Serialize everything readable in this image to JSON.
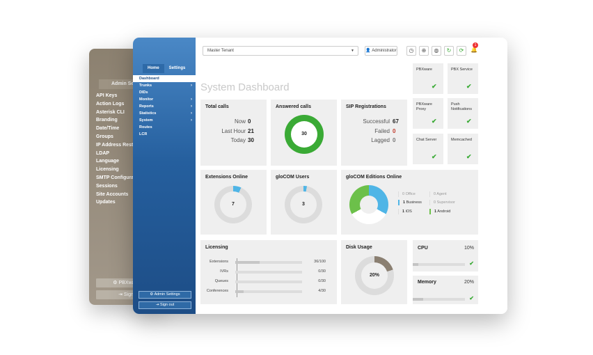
{
  "back_window": {
    "title": "Admin Setti",
    "items": [
      "API Keys",
      "Action Logs",
      "Asterisk CLI",
      "Branding",
      "Date/Time",
      "Groups",
      "IP Address Restric",
      "LDAP",
      "Language",
      "Licensing",
      "SMTP Configurati",
      "Sessions",
      "Site Accounts",
      "Updates"
    ],
    "btn_pbxware": "PBXware",
    "btn_sign": "Sign"
  },
  "sidebar": {
    "tabs": [
      "Home",
      "Settings"
    ],
    "menu": [
      {
        "label": "Dashboard",
        "arrow": ""
      },
      {
        "label": "Trunks",
        "arrow": "›"
      },
      {
        "label": "DIDs",
        "arrow": ""
      },
      {
        "label": "Monitor",
        "arrow": "›"
      },
      {
        "label": "Reports",
        "arrow": "›"
      },
      {
        "label": "Statistics",
        "arrow": "›"
      },
      {
        "label": "System",
        "arrow": "›"
      },
      {
        "label": "Routes",
        "arrow": ""
      },
      {
        "label": "LCR",
        "arrow": ""
      }
    ],
    "admin_settings": "Admin Settings",
    "sign_out": "Sign out"
  },
  "header": {
    "tenant": "Master Tenant",
    "user": "Administrator",
    "notifications": "1"
  },
  "page_title": "System Dashboard",
  "total_calls": {
    "title": "Total calls",
    "rows": [
      {
        "label": "Now",
        "value": "0"
      },
      {
        "label": "Last Hour",
        "value": "21"
      },
      {
        "label": "Today",
        "value": "30"
      }
    ]
  },
  "answered_calls": {
    "title": "Answered calls",
    "value": "30",
    "fraction": 1.0
  },
  "sip": {
    "title": "SIP Registrations",
    "rows": [
      {
        "label": "Successful",
        "value": "67"
      },
      {
        "label": "Failed",
        "value": "0"
      },
      {
        "label": "Lagged",
        "value": "0"
      }
    ]
  },
  "services": [
    {
      "label": "PBXware",
      "status": "ok"
    },
    {
      "label": "PBX Service",
      "status": "ok"
    },
    {
      "label": "PBXware Proxy",
      "status": "ok"
    },
    {
      "label": "Push Notifications",
      "status": "ok"
    },
    {
      "label": "Chat Server",
      "status": "ok"
    },
    {
      "label": "Memcached",
      "status": "ok"
    }
  ],
  "extensions_online": {
    "title": "Extensions Online",
    "value": "7",
    "fraction": 0.07
  },
  "glocom_users": {
    "title": "gloCOM Users",
    "value": "3",
    "fraction": 0.03
  },
  "glocom_editions": {
    "title": "gloCOM Editions Online",
    "legend": [
      {
        "count": "0",
        "label": "Office"
      },
      {
        "count": "0",
        "label": "Agent"
      },
      {
        "count": "1",
        "label": "Business"
      },
      {
        "count": "0",
        "label": "Supervisor"
      },
      {
        "count": "1",
        "label": "iOS"
      },
      {
        "count": "1",
        "label": "Android"
      }
    ]
  },
  "licensing": {
    "title": "Licensing",
    "rows": [
      {
        "label": "Extensions",
        "value": "36/100",
        "fraction": 0.36
      },
      {
        "label": "IVRs",
        "value": "0/30",
        "fraction": 0
      },
      {
        "label": "Queues",
        "value": "0/30",
        "fraction": 0
      },
      {
        "label": "Conferences",
        "value": "4/30",
        "fraction": 0.13
      }
    ]
  },
  "disk": {
    "title": "Disk Usage",
    "value": "20%",
    "fraction": 0.2
  },
  "cpu": {
    "title": "CPU",
    "value": "10%",
    "fraction": 0.1
  },
  "memory": {
    "title": "Memory",
    "value": "20%",
    "fraction": 0.2
  },
  "colors": {
    "green": "#3aaa35",
    "blue": "#4fb5e6",
    "grey": "#dcdcdc",
    "dark_grey": "#8a7f71",
    "sidebar": "#255f9e"
  }
}
